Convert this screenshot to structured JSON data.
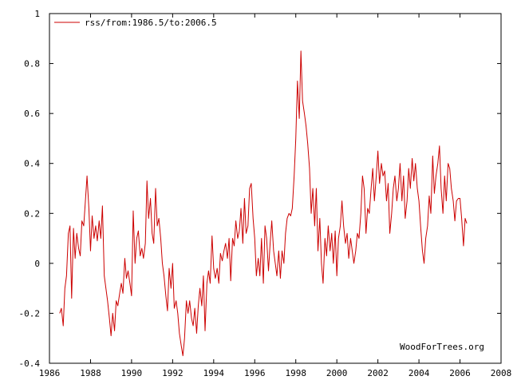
{
  "chart_data": {
    "type": "line",
    "legend_position": "top-left",
    "grid": false,
    "xlim": [
      1986,
      2008
    ],
    "ylim": [
      -0.4,
      1
    ],
    "x_ticks": [
      1986,
      1988,
      1990,
      1992,
      1994,
      1996,
      1998,
      2000,
      2002,
      2004,
      2006,
      2008
    ],
    "y_ticks": [
      -0.4,
      -0.2,
      0,
      0.2,
      0.4,
      0.6,
      0.8,
      1
    ],
    "x_tick_labels": [
      "1986",
      "1988",
      "1990",
      "1992",
      "1994",
      "1996",
      "1998",
      "2000",
      "2002",
      "2004",
      "2006",
      "2008"
    ],
    "y_tick_labels": [
      "-0.4",
      "-0.2",
      "0",
      "0.2",
      "0.4",
      "0.6",
      "0.8",
      "1"
    ],
    "watermark": "WoodForTrees.org",
    "series": [
      {
        "name": "rss/from:1986.5/to:2006.5",
        "color": "#cc0000",
        "points": [
          [
            1986.5,
            -0.2
          ],
          [
            1986.58,
            -0.18
          ],
          [
            1986.67,
            -0.25
          ],
          [
            1986.75,
            -0.1
          ],
          [
            1986.83,
            -0.05
          ],
          [
            1986.92,
            0.12
          ],
          [
            1987.0,
            0.15
          ],
          [
            1987.08,
            -0.14
          ],
          [
            1987.17,
            0.14
          ],
          [
            1987.25,
            0.02
          ],
          [
            1987.33,
            0.12
          ],
          [
            1987.42,
            0.06
          ],
          [
            1987.5,
            0.03
          ],
          [
            1987.58,
            0.17
          ],
          [
            1987.67,
            0.15
          ],
          [
            1987.75,
            0.25
          ],
          [
            1987.83,
            0.35
          ],
          [
            1987.92,
            0.22
          ],
          [
            1988.0,
            0.05
          ],
          [
            1988.08,
            0.19
          ],
          [
            1988.17,
            0.1
          ],
          [
            1988.25,
            0.15
          ],
          [
            1988.33,
            0.09
          ],
          [
            1988.42,
            0.17
          ],
          [
            1988.5,
            0.1
          ],
          [
            1988.58,
            0.23
          ],
          [
            1988.67,
            -0.05
          ],
          [
            1988.75,
            -0.1
          ],
          [
            1988.83,
            -0.15
          ],
          [
            1988.92,
            -0.22
          ],
          [
            1989.0,
            -0.29
          ],
          [
            1989.08,
            -0.2
          ],
          [
            1989.17,
            -0.27
          ],
          [
            1989.25,
            -0.15
          ],
          [
            1989.33,
            -0.17
          ],
          [
            1989.42,
            -0.12
          ],
          [
            1989.5,
            -0.08
          ],
          [
            1989.58,
            -0.12
          ],
          [
            1989.67,
            0.02
          ],
          [
            1989.75,
            -0.06
          ],
          [
            1989.83,
            -0.03
          ],
          [
            1989.92,
            -0.08
          ],
          [
            1990.0,
            -0.13
          ],
          [
            1990.08,
            0.21
          ],
          [
            1990.17,
            0.0
          ],
          [
            1990.25,
            0.1
          ],
          [
            1990.33,
            0.13
          ],
          [
            1990.42,
            0.03
          ],
          [
            1990.5,
            0.06
          ],
          [
            1990.58,
            0.02
          ],
          [
            1990.67,
            0.08
          ],
          [
            1990.75,
            0.33
          ],
          [
            1990.83,
            0.18
          ],
          [
            1990.92,
            0.26
          ],
          [
            1991.0,
            0.12
          ],
          [
            1991.08,
            0.08
          ],
          [
            1991.17,
            0.3
          ],
          [
            1991.25,
            0.15
          ],
          [
            1991.33,
            0.18
          ],
          [
            1991.42,
            0.1
          ],
          [
            1991.5,
            0.0
          ],
          [
            1991.58,
            -0.05
          ],
          [
            1991.67,
            -0.13
          ],
          [
            1991.75,
            -0.19
          ],
          [
            1991.83,
            -0.02
          ],
          [
            1991.92,
            -0.1
          ],
          [
            1992.0,
            0.0
          ],
          [
            1992.08,
            -0.18
          ],
          [
            1992.17,
            -0.15
          ],
          [
            1992.25,
            -0.2
          ],
          [
            1992.33,
            -0.28
          ],
          [
            1992.42,
            -0.33
          ],
          [
            1992.5,
            -0.37
          ],
          [
            1992.58,
            -0.3
          ],
          [
            1992.67,
            -0.15
          ],
          [
            1992.75,
            -0.2
          ],
          [
            1992.83,
            -0.15
          ],
          [
            1992.92,
            -0.22
          ],
          [
            1993.0,
            -0.25
          ],
          [
            1993.08,
            -0.18
          ],
          [
            1993.17,
            -0.28
          ],
          [
            1993.25,
            -0.17
          ],
          [
            1993.33,
            -0.1
          ],
          [
            1993.42,
            -0.17
          ],
          [
            1993.5,
            -0.05
          ],
          [
            1993.58,
            -0.27
          ],
          [
            1993.67,
            -0.08
          ],
          [
            1993.75,
            -0.03
          ],
          [
            1993.83,
            -0.08
          ],
          [
            1993.92,
            0.11
          ],
          [
            1994.0,
            -0.02
          ],
          [
            1994.08,
            -0.06
          ],
          [
            1994.17,
            -0.02
          ],
          [
            1994.25,
            -0.08
          ],
          [
            1994.33,
            0.04
          ],
          [
            1994.42,
            0.01
          ],
          [
            1994.5,
            0.05
          ],
          [
            1994.58,
            0.08
          ],
          [
            1994.67,
            0.02
          ],
          [
            1994.75,
            0.1
          ],
          [
            1994.83,
            -0.07
          ],
          [
            1994.92,
            0.1
          ],
          [
            1995.0,
            0.07
          ],
          [
            1995.08,
            0.17
          ],
          [
            1995.17,
            0.1
          ],
          [
            1995.25,
            0.13
          ],
          [
            1995.33,
            0.22
          ],
          [
            1995.42,
            0.08
          ],
          [
            1995.5,
            0.26
          ],
          [
            1995.58,
            0.12
          ],
          [
            1995.67,
            0.15
          ],
          [
            1995.75,
            0.3
          ],
          [
            1995.83,
            0.32
          ],
          [
            1995.92,
            0.18
          ],
          [
            1996.0,
            0.1
          ],
          [
            1996.08,
            -0.05
          ],
          [
            1996.17,
            0.02
          ],
          [
            1996.25,
            -0.05
          ],
          [
            1996.33,
            0.1
          ],
          [
            1996.42,
            -0.08
          ],
          [
            1996.5,
            0.15
          ],
          [
            1996.58,
            0.1
          ],
          [
            1996.67,
            -0.03
          ],
          [
            1996.75,
            0.08
          ],
          [
            1996.83,
            0.17
          ],
          [
            1996.92,
            0.05
          ],
          [
            1997.0,
            0.0
          ],
          [
            1997.08,
            -0.05
          ],
          [
            1997.17,
            0.05
          ],
          [
            1997.25,
            -0.06
          ],
          [
            1997.33,
            0.05
          ],
          [
            1997.42,
            0.0
          ],
          [
            1997.5,
            0.12
          ],
          [
            1997.58,
            0.18
          ],
          [
            1997.67,
            0.2
          ],
          [
            1997.75,
            0.19
          ],
          [
            1997.83,
            0.22
          ],
          [
            1997.92,
            0.35
          ],
          [
            1998.0,
            0.5
          ],
          [
            1998.08,
            0.73
          ],
          [
            1998.17,
            0.58
          ],
          [
            1998.25,
            0.85
          ],
          [
            1998.33,
            0.65
          ],
          [
            1998.42,
            0.6
          ],
          [
            1998.5,
            0.55
          ],
          [
            1998.58,
            0.48
          ],
          [
            1998.67,
            0.38
          ],
          [
            1998.75,
            0.2
          ],
          [
            1998.83,
            0.3
          ],
          [
            1998.92,
            0.15
          ],
          [
            1999.0,
            0.3
          ],
          [
            1999.08,
            0.05
          ],
          [
            1999.17,
            0.18
          ],
          [
            1999.25,
            0.0
          ],
          [
            1999.33,
            -0.08
          ],
          [
            1999.42,
            0.1
          ],
          [
            1999.5,
            0.03
          ],
          [
            1999.58,
            0.15
          ],
          [
            1999.67,
            0.05
          ],
          [
            1999.75,
            0.12
          ],
          [
            1999.83,
            0.0
          ],
          [
            1999.92,
            0.13
          ],
          [
            2000.0,
            -0.05
          ],
          [
            2000.08,
            0.1
          ],
          [
            2000.17,
            0.15
          ],
          [
            2000.25,
            0.25
          ],
          [
            2000.33,
            0.15
          ],
          [
            2000.42,
            0.08
          ],
          [
            2000.5,
            0.12
          ],
          [
            2000.58,
            0.02
          ],
          [
            2000.67,
            0.1
          ],
          [
            2000.75,
            0.05
          ],
          [
            2000.83,
            0.0
          ],
          [
            2000.92,
            0.05
          ],
          [
            2001.0,
            0.12
          ],
          [
            2001.08,
            0.1
          ],
          [
            2001.17,
            0.2
          ],
          [
            2001.25,
            0.35
          ],
          [
            2001.33,
            0.3
          ],
          [
            2001.42,
            0.12
          ],
          [
            2001.5,
            0.22
          ],
          [
            2001.58,
            0.2
          ],
          [
            2001.67,
            0.3
          ],
          [
            2001.75,
            0.38
          ],
          [
            2001.83,
            0.25
          ],
          [
            2001.92,
            0.35
          ],
          [
            2002.0,
            0.45
          ],
          [
            2002.08,
            0.32
          ],
          [
            2002.17,
            0.4
          ],
          [
            2002.25,
            0.35
          ],
          [
            2002.33,
            0.37
          ],
          [
            2002.42,
            0.25
          ],
          [
            2002.5,
            0.32
          ],
          [
            2002.58,
            0.12
          ],
          [
            2002.67,
            0.2
          ],
          [
            2002.75,
            0.3
          ],
          [
            2002.83,
            0.35
          ],
          [
            2002.92,
            0.25
          ],
          [
            2003.0,
            0.3
          ],
          [
            2003.08,
            0.4
          ],
          [
            2003.17,
            0.25
          ],
          [
            2003.25,
            0.35
          ],
          [
            2003.33,
            0.18
          ],
          [
            2003.42,
            0.25
          ],
          [
            2003.5,
            0.38
          ],
          [
            2003.58,
            0.3
          ],
          [
            2003.67,
            0.42
          ],
          [
            2003.75,
            0.33
          ],
          [
            2003.83,
            0.4
          ],
          [
            2003.92,
            0.3
          ],
          [
            2004.0,
            0.25
          ],
          [
            2004.08,
            0.15
          ],
          [
            2004.17,
            0.05
          ],
          [
            2004.25,
            0.0
          ],
          [
            2004.33,
            0.1
          ],
          [
            2004.42,
            0.15
          ],
          [
            2004.5,
            0.27
          ],
          [
            2004.58,
            0.2
          ],
          [
            2004.67,
            0.43
          ],
          [
            2004.75,
            0.28
          ],
          [
            2004.83,
            0.35
          ],
          [
            2004.92,
            0.4
          ],
          [
            2005.0,
            0.47
          ],
          [
            2005.08,
            0.3
          ],
          [
            2005.17,
            0.2
          ],
          [
            2005.25,
            0.35
          ],
          [
            2005.33,
            0.25
          ],
          [
            2005.42,
            0.4
          ],
          [
            2005.5,
            0.38
          ],
          [
            2005.58,
            0.3
          ],
          [
            2005.67,
            0.25
          ],
          [
            2005.75,
            0.17
          ],
          [
            2005.83,
            0.25
          ],
          [
            2005.92,
            0.26
          ],
          [
            2006.0,
            0.26
          ],
          [
            2006.08,
            0.18
          ],
          [
            2006.17,
            0.07
          ],
          [
            2006.25,
            0.18
          ],
          [
            2006.33,
            0.16
          ]
        ]
      }
    ]
  }
}
